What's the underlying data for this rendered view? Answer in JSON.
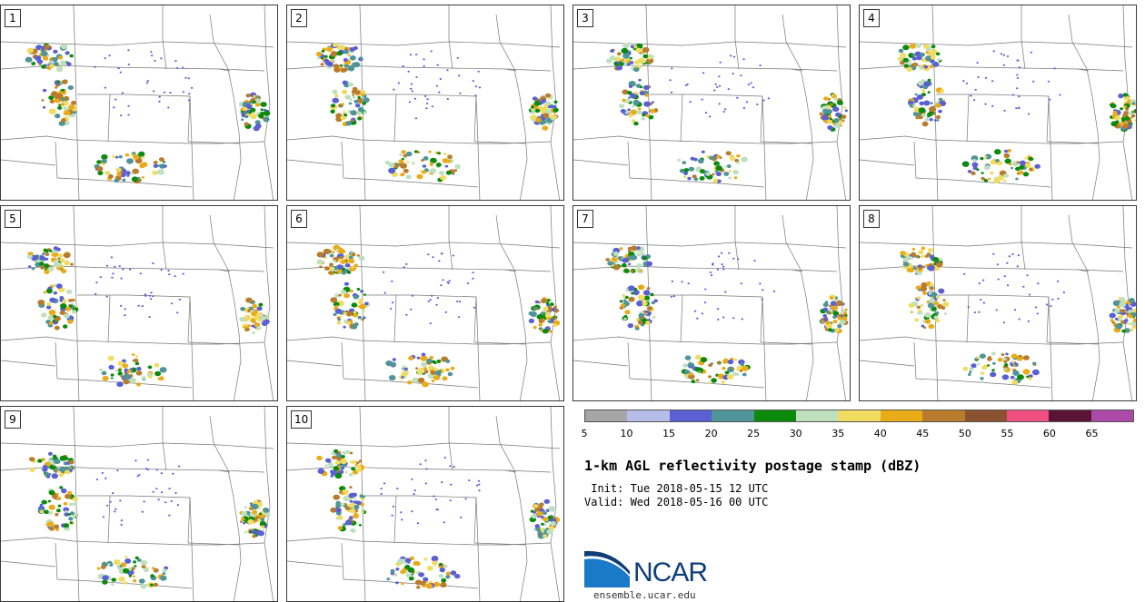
{
  "panels": [
    {
      "label": "1"
    },
    {
      "label": "2"
    },
    {
      "label": "3"
    },
    {
      "label": "4"
    },
    {
      "label": "5"
    },
    {
      "label": "6"
    },
    {
      "label": "7"
    },
    {
      "label": "8"
    },
    {
      "label": "9"
    },
    {
      "label": "10"
    }
  ],
  "colorbar": {
    "colors": [
      "#a6a6a6",
      "#b6bde8",
      "#5a5fd4",
      "#4f9498",
      "#0b8a0b",
      "#bfe0bf",
      "#efdc60",
      "#eaab18",
      "#b87c2c",
      "#8a5230",
      "#ef5080",
      "#5b1436",
      "#ac4aa8"
    ],
    "ticks": [
      "5",
      "10",
      "15",
      "20",
      "25",
      "30",
      "35",
      "40",
      "45",
      "50",
      "55",
      "60",
      "65"
    ]
  },
  "title": "1-km AGL reflectivity postage stamp (dBZ)",
  "init": " Init: Tue 2018-05-15 12 UTC",
  "valid": "Valid: Wed 2018-05-16 00 UTC",
  "logo": {
    "text": "NCAR",
    "url": "ensemble.ucar.edu"
  }
}
